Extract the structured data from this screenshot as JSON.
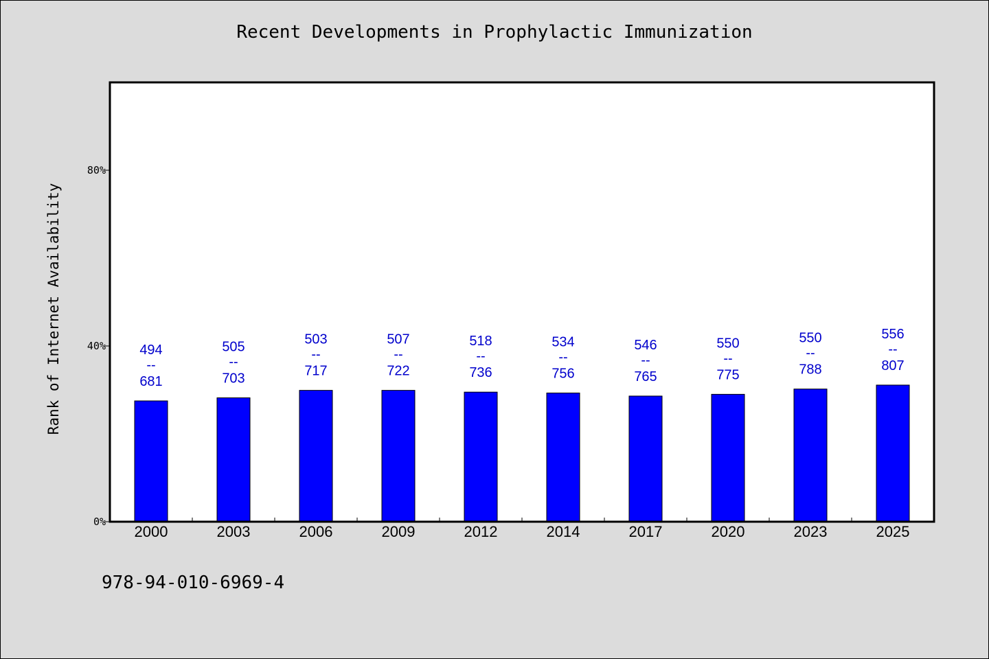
{
  "colors": {
    "background": "#dcdcdc",
    "plot_background": "#ffffff",
    "bar": "#0000ff",
    "label": "#0000cc"
  },
  "chart_data": {
    "type": "bar",
    "title": "Recent Developments in Prophylactic Immunization",
    "xlabel": "",
    "ylabel": "Rank of Internet Availability",
    "categories": [
      "2000",
      "2003",
      "2006",
      "2009",
      "2012",
      "2014",
      "2017",
      "2020",
      "2023",
      "2025"
    ],
    "values": [
      27.5,
      28.2,
      29.9,
      29.9,
      29.5,
      29.3,
      28.6,
      29.0,
      30.2,
      31.1
    ],
    "value_unit": "%",
    "label_top": [
      "494",
      "505",
      "503",
      "507",
      "518",
      "534",
      "546",
      "550",
      "550",
      "556"
    ],
    "label_separator": "--",
    "label_bottom": [
      "681",
      "703",
      "717",
      "722",
      "736",
      "756",
      "765",
      "775",
      "788",
      "807"
    ],
    "yticks": [
      0,
      40,
      80
    ],
    "ytick_labels": [
      "0%",
      "40%",
      "80%"
    ],
    "ylim": [
      0,
      100
    ],
    "grid": false,
    "legend": "none"
  },
  "footnote": "978-94-010-6969-4"
}
